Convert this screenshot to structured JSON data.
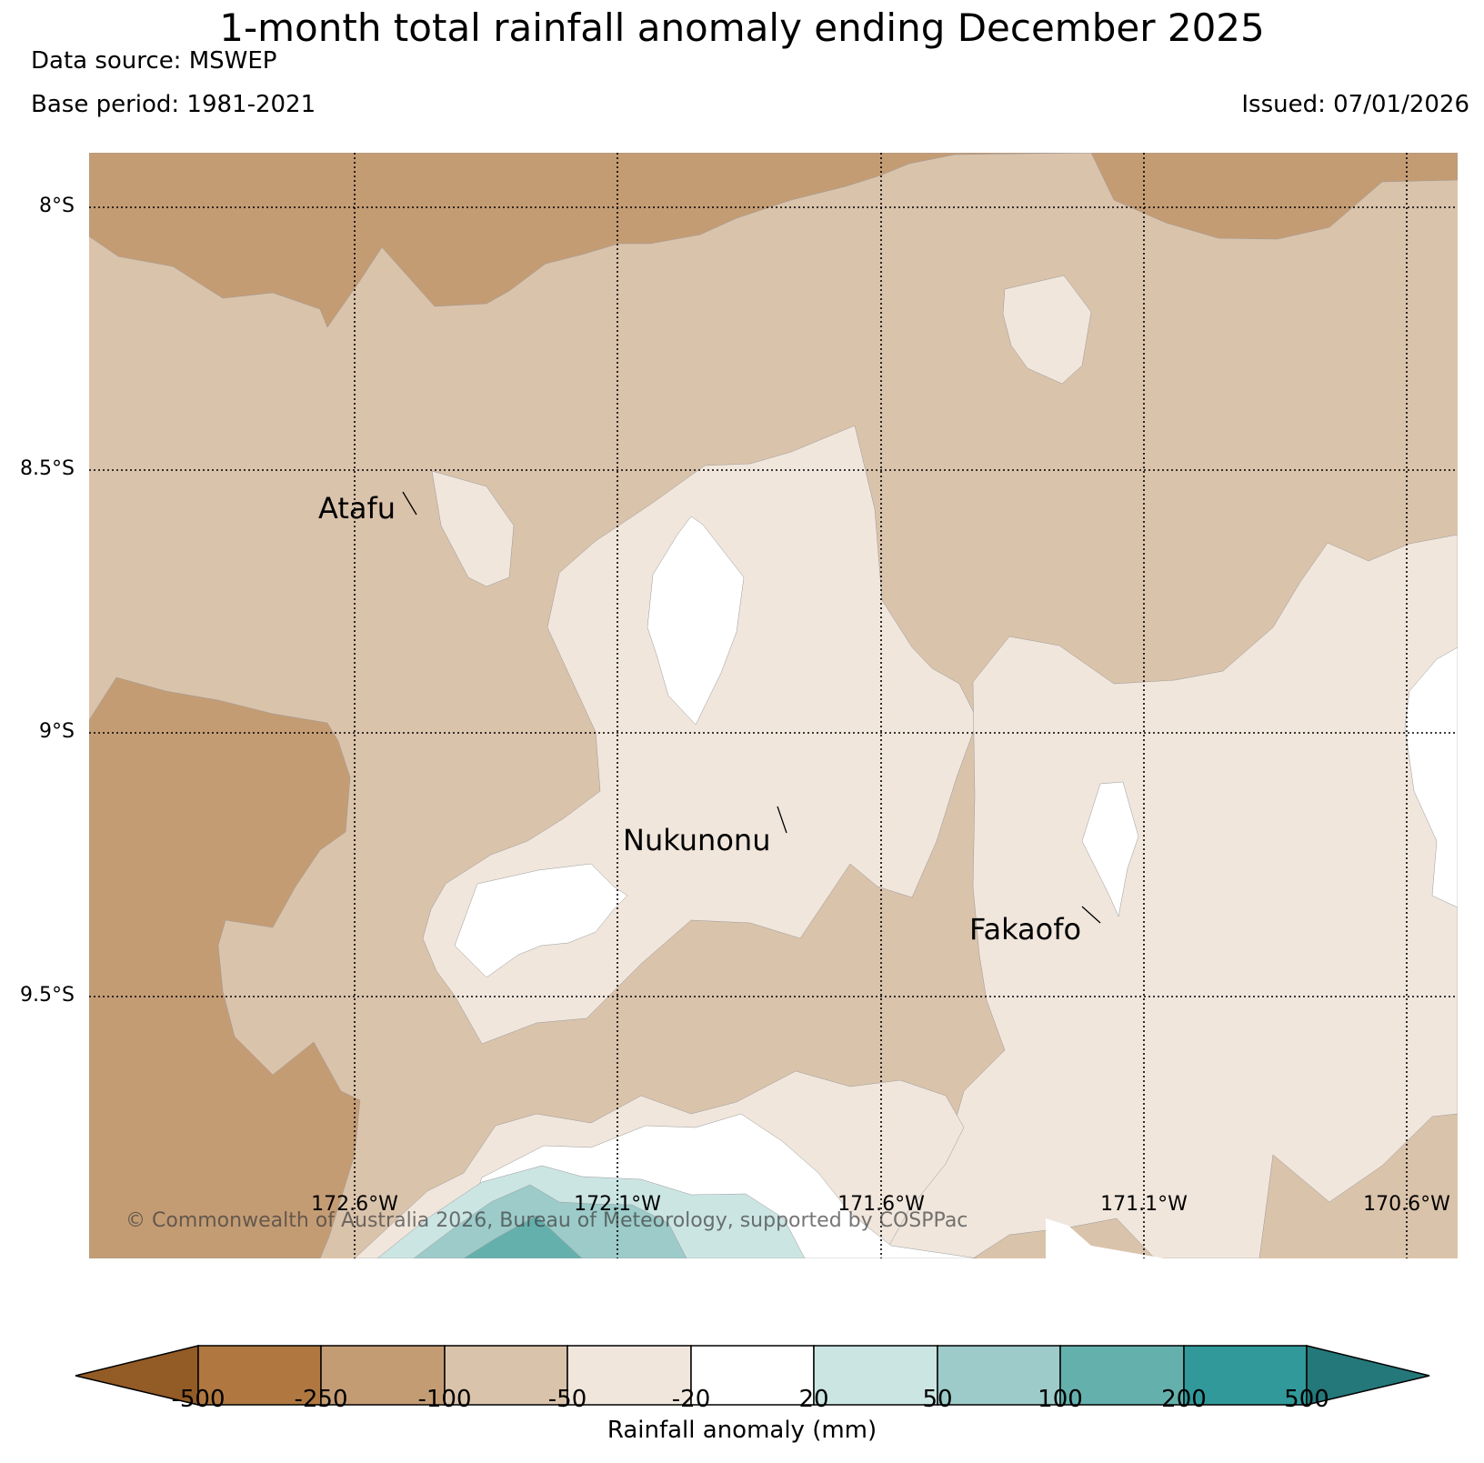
{
  "header": {
    "title": "1-month total rainfall anomaly ending December 2025",
    "data_source": "Data source: MSWEP",
    "base_period": "Base period: 1981-2021",
    "issued": "Issued: 07/01/2026"
  },
  "map": {
    "lat_labels": [
      "8°S",
      "8.5°S",
      "9°S",
      "9.5°S"
    ],
    "lon_labels": [
      "172.6°W",
      "172.1°W",
      "171.6°W",
      "171.1°W",
      "170.6°W"
    ],
    "places": [
      "Atafu",
      "Nukunonu",
      "Fakaofo"
    ],
    "copyright": "© Commonwealth of Australia 2026, Bureau of Meteorology, supported by COSPPac"
  },
  "colorbar": {
    "label": "Rainfall anomaly (mm)",
    "ticks": [
      "-500",
      "-250",
      "-100",
      "-50",
      "-20",
      "20",
      "50",
      "100",
      "200",
      "500"
    ],
    "colors": [
      "#935b26",
      "#b07840",
      "#c49c74",
      "#dac3ab",
      "#f0e6dc",
      "#ffffff",
      "#cbe5e3",
      "#9ccbc9",
      "#64b0ad",
      "#31999a",
      "#24787a"
    ]
  }
}
